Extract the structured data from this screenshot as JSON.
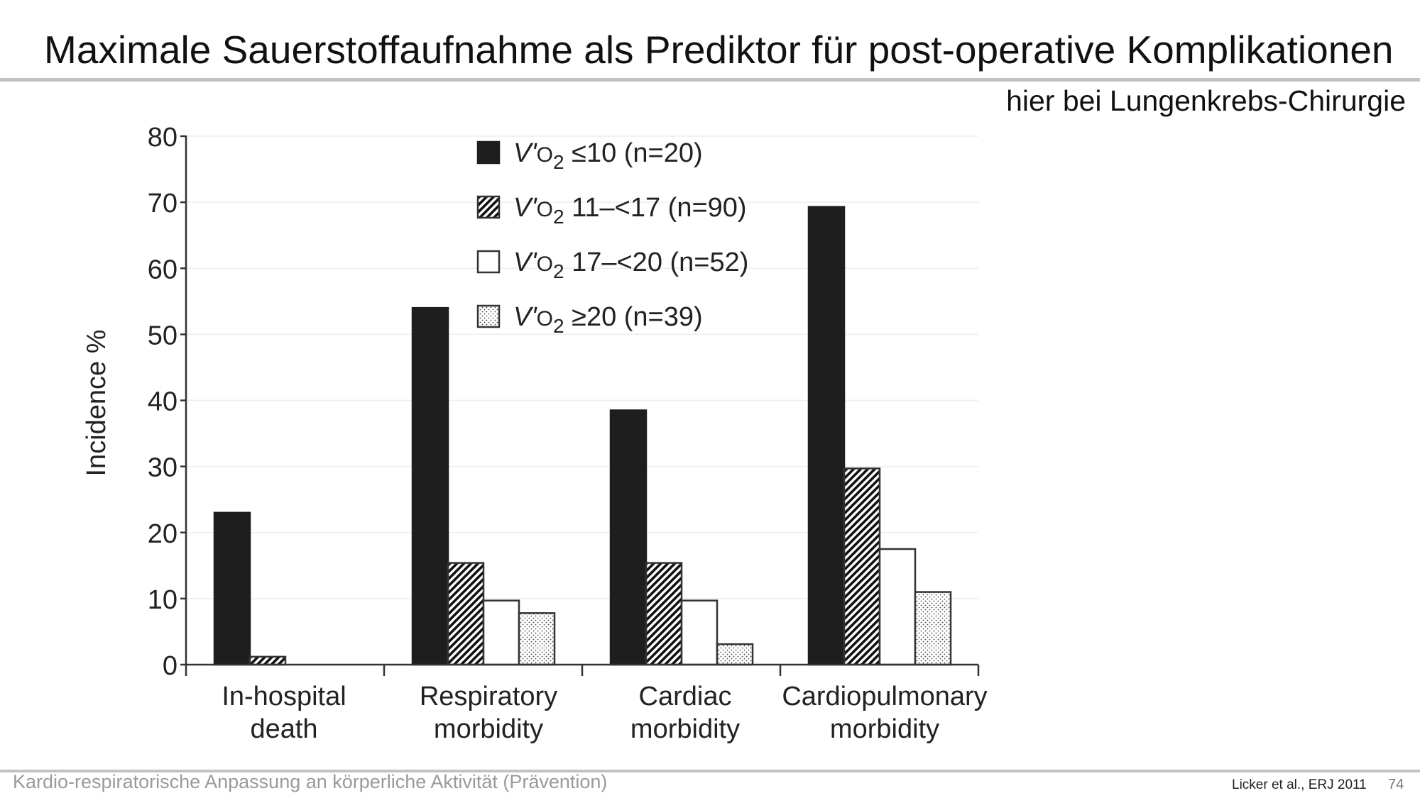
{
  "slide": {
    "title": "Maximale Sauerstoffaufnahme als Prediktor für post-operative Komplikationen",
    "subtitle": "hier bei Lungenkrebs-Chirurgie",
    "footer": "Kardio-respiratorische Anpassung an körperliche Aktivität (Prävention)",
    "citation": "Licker et al., ERJ 2011",
    "page_number": "74"
  },
  "chart_data": {
    "type": "bar",
    "ylabel": "Incidence %",
    "ylim": [
      0,
      80
    ],
    "yticks": [
      "0",
      "10",
      "20",
      "30",
      "40",
      "50",
      "60",
      "70",
      "80"
    ],
    "categories": [
      [
        "In-hospital",
        "death"
      ],
      [
        "Respiratory",
        "morbidity"
      ],
      [
        "Cardiac",
        "morbidity"
      ],
      [
        "Cardiopulmonary",
        "morbidity"
      ]
    ],
    "legend_position": "top-center",
    "series": [
      {
        "name": "V'O2 ≤10 (n=20)",
        "label_var": "V'",
        "label_o": "O",
        "label_sub": "2",
        "label_rest": " ≤10 (n=20)",
        "fill": "solid-black",
        "values": [
          23,
          54,
          38.5,
          69.3
        ]
      },
      {
        "name": "V'O2 11–<17 (n=90)",
        "label_var": "V'",
        "label_o": "O",
        "label_sub": "2",
        "label_rest": " 11–<17 (n=90)",
        "fill": "hatched",
        "values": [
          1.2,
          15.4,
          15.4,
          29.7
        ]
      },
      {
        "name": "V'O2 17–<20 (n=52)",
        "label_var": "V'",
        "label_o": "O",
        "label_sub": "2",
        "label_rest": " 17–<20 (n=52)",
        "fill": "white",
        "values": [
          0,
          9.7,
          9.7,
          17.5
        ]
      },
      {
        "name": "V'O2 ≥20 (n=39)",
        "label_var": "V'",
        "label_o": "O",
        "label_sub": "2",
        "label_rest": " ≥20 (n=39)",
        "fill": "dotted",
        "values": [
          0,
          7.8,
          3.1,
          11
        ]
      }
    ]
  }
}
